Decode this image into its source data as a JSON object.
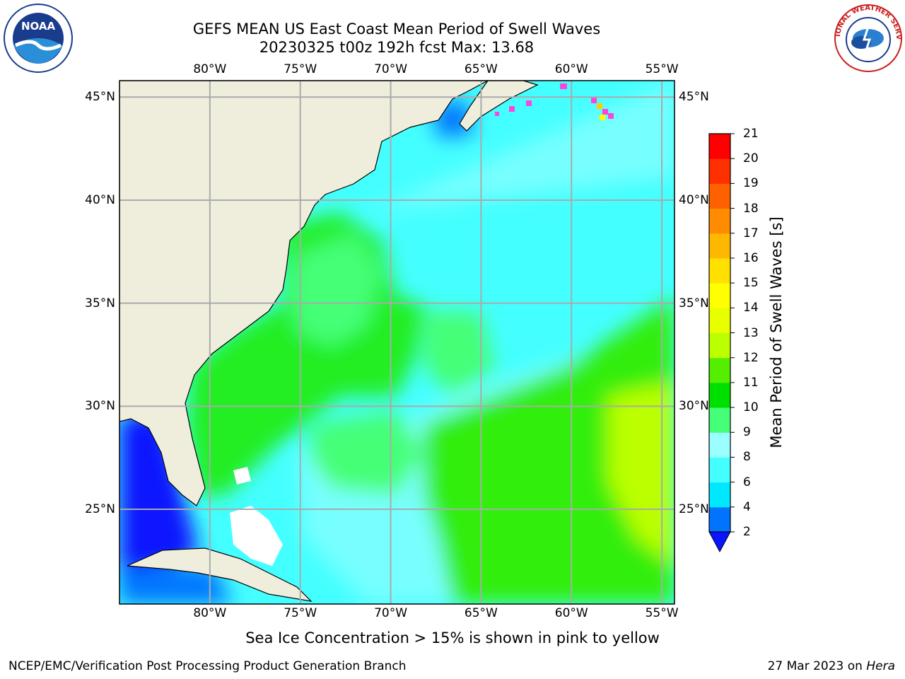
{
  "header": {
    "title_line1": "GEFS MEAN US East Coast Mean Period of Swell Waves",
    "title_line2": "20230325 t00z 192h fcst   Max: 13.68"
  },
  "logos": {
    "left": {
      "name": "noaa-logo",
      "text": "NOAA"
    },
    "right": {
      "name": "nws-logo",
      "text": "NATIONAL WEATHER SERVICE"
    }
  },
  "map": {
    "lon_ticks": [
      "80°W",
      "75°W",
      "70°W",
      "65°W",
      "60°W",
      "55°W"
    ],
    "lat_ticks": [
      "45°N",
      "40°N",
      "35°N",
      "30°N",
      "25°N"
    ],
    "lon_range": [
      -85,
      -54.3
    ],
    "lat_range": [
      20.4,
      45.8
    ],
    "gridlines": true,
    "land_color": "#efeedd",
    "missing_color": "#ffffff"
  },
  "colorbar": {
    "label": "Mean Period of Swell Waves [s]",
    "ticks": [
      "2",
      "4",
      "6",
      "8",
      "9",
      "10",
      "11",
      "12",
      "13",
      "14",
      "15",
      "16",
      "17",
      "18",
      "19",
      "20",
      "21"
    ],
    "colors": [
      "#0074ff",
      "#00e8ff",
      "#44ffff",
      "#99ffff",
      "#44ff77",
      "#00e000",
      "#55ee00",
      "#bbff00",
      "#e8ff00",
      "#ffff00",
      "#ffe000",
      "#ffb800",
      "#ff8c00",
      "#ff6000",
      "#ff3000",
      "#ff0000"
    ],
    "under_color": "#0a14ff"
  },
  "footer": {
    "note": "Sea Ice Concentration > 15% is shown in pink to yellow",
    "left": "NCEP/EMC/Verification Post Processing Product Generation Branch",
    "date": "27 Mar 2023 on ",
    "machine": "Hera"
  }
}
